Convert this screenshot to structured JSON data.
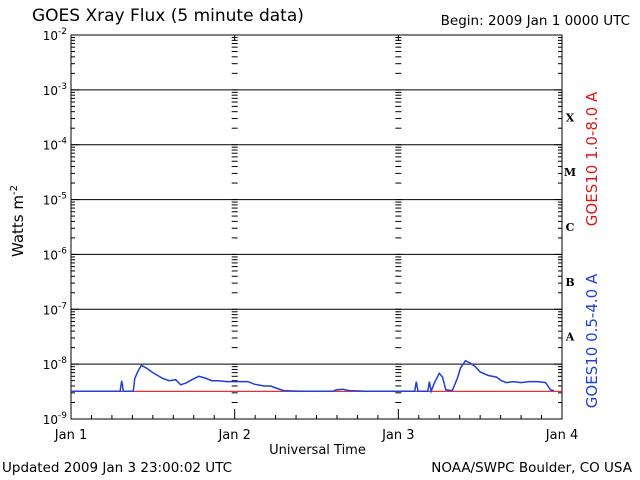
{
  "header": {
    "title": "GOES Xray Flux (5 minute data)",
    "begin": "Begin:  2009 Jan 1 0000 UTC"
  },
  "footer": {
    "updated": "Updated 2009 Jan  3 23:00:02 UTC",
    "credit": "NOAA/SWPC Boulder, CO USA"
  },
  "chart_data": {
    "type": "line",
    "title": "GOES Xray Flux (5 minute data)",
    "xlabel": "Universal Time",
    "ylabel": "Watts m-2",
    "y_scale": "log",
    "ylim": [
      1e-09,
      0.01
    ],
    "y_ticks": [
      "10-9",
      "10-8",
      "10-7",
      "10-6",
      "10-5",
      "10-4",
      "10-3",
      "10-2"
    ],
    "x_days": [
      0,
      3
    ],
    "x_ticks": [
      "Jan 1",
      "Jan 2",
      "Jan 3",
      "Jan 4"
    ],
    "flare_classes": [
      "A",
      "B",
      "C",
      "M",
      "X"
    ],
    "grid": "horizontal lines at each decade above 10^-8",
    "series": [
      {
        "name": "GOES10 1.0-8.0 A",
        "color": "#d7191c",
        "points": [
          [
            0.0,
            3.2e-09
          ],
          [
            3.0,
            3.2e-09
          ]
        ]
      },
      {
        "name": "GOES10 0.5-4.0 A",
        "color": "#1f3fd6",
        "points": [
          [
            0.0,
            3.2e-09
          ],
          [
            0.3,
            3.2e-09
          ],
          [
            0.31,
            5e-09
          ],
          [
            0.32,
            3.2e-09
          ],
          [
            0.38,
            3.2e-09
          ],
          [
            0.39,
            5.5e-09
          ],
          [
            0.41,
            7.5e-09
          ],
          [
            0.43,
            9.5e-09
          ],
          [
            0.46,
            8.5e-09
          ],
          [
            0.5,
            7e-09
          ],
          [
            0.53,
            6.2e-09
          ],
          [
            0.56,
            5.5e-09
          ],
          [
            0.6,
            5e-09
          ],
          [
            0.64,
            5.2e-09
          ],
          [
            0.67,
            4.2e-09
          ],
          [
            0.7,
            4.5e-09
          ],
          [
            0.74,
            5.2e-09
          ],
          [
            0.78,
            6e-09
          ],
          [
            0.82,
            5.6e-09
          ],
          [
            0.86,
            5e-09
          ],
          [
            0.9,
            5e-09
          ],
          [
            0.95,
            4.8e-09
          ],
          [
            1.0,
            4.8e-09
          ],
          [
            1.04,
            4.8e-09
          ],
          [
            1.08,
            4.8e-09
          ],
          [
            1.12,
            4.3e-09
          ],
          [
            1.18,
            4e-09
          ],
          [
            1.22,
            4e-09
          ],
          [
            1.26,
            3.6e-09
          ],
          [
            1.3,
            3.3e-09
          ],
          [
            1.4,
            3.2e-09
          ],
          [
            1.6,
            3.2e-09
          ],
          [
            1.62,
            3.4e-09
          ],
          [
            1.66,
            3.5e-09
          ],
          [
            1.7,
            3.3e-09
          ],
          [
            1.8,
            3.2e-09
          ],
          [
            2.05,
            3.2e-09
          ],
          [
            2.1,
            3.2e-09
          ],
          [
            2.11,
            4.8e-09
          ],
          [
            2.12,
            3.2e-09
          ],
          [
            2.18,
            3.2e-09
          ],
          [
            2.19,
            4.8e-09
          ],
          [
            2.2,
            3.2e-09
          ],
          [
            2.22,
            4.5e-09
          ],
          [
            2.23,
            5.2e-09
          ],
          [
            2.25,
            6.8e-09
          ],
          [
            2.27,
            5.8e-09
          ],
          [
            2.29,
            3.4e-09
          ],
          [
            2.33,
            3.3e-09
          ],
          [
            2.36,
            5.5e-09
          ],
          [
            2.38,
            8.5e-09
          ],
          [
            2.41,
            1.15e-08
          ],
          [
            2.44,
            1.05e-08
          ],
          [
            2.47,
            9e-09
          ],
          [
            2.5,
            7.2e-09
          ],
          [
            2.55,
            6.2e-09
          ],
          [
            2.6,
            5.8e-09
          ],
          [
            2.63,
            5e-09
          ],
          [
            2.66,
            4.6e-09
          ],
          [
            2.7,
            4.8e-09
          ],
          [
            2.75,
            4.6e-09
          ],
          [
            2.8,
            4.8e-09
          ],
          [
            2.85,
            4.8e-09
          ],
          [
            2.9,
            4.6e-09
          ],
          [
            2.93,
            3.4e-09
          ],
          [
            2.95,
            3.3e-09
          ]
        ]
      }
    ]
  }
}
